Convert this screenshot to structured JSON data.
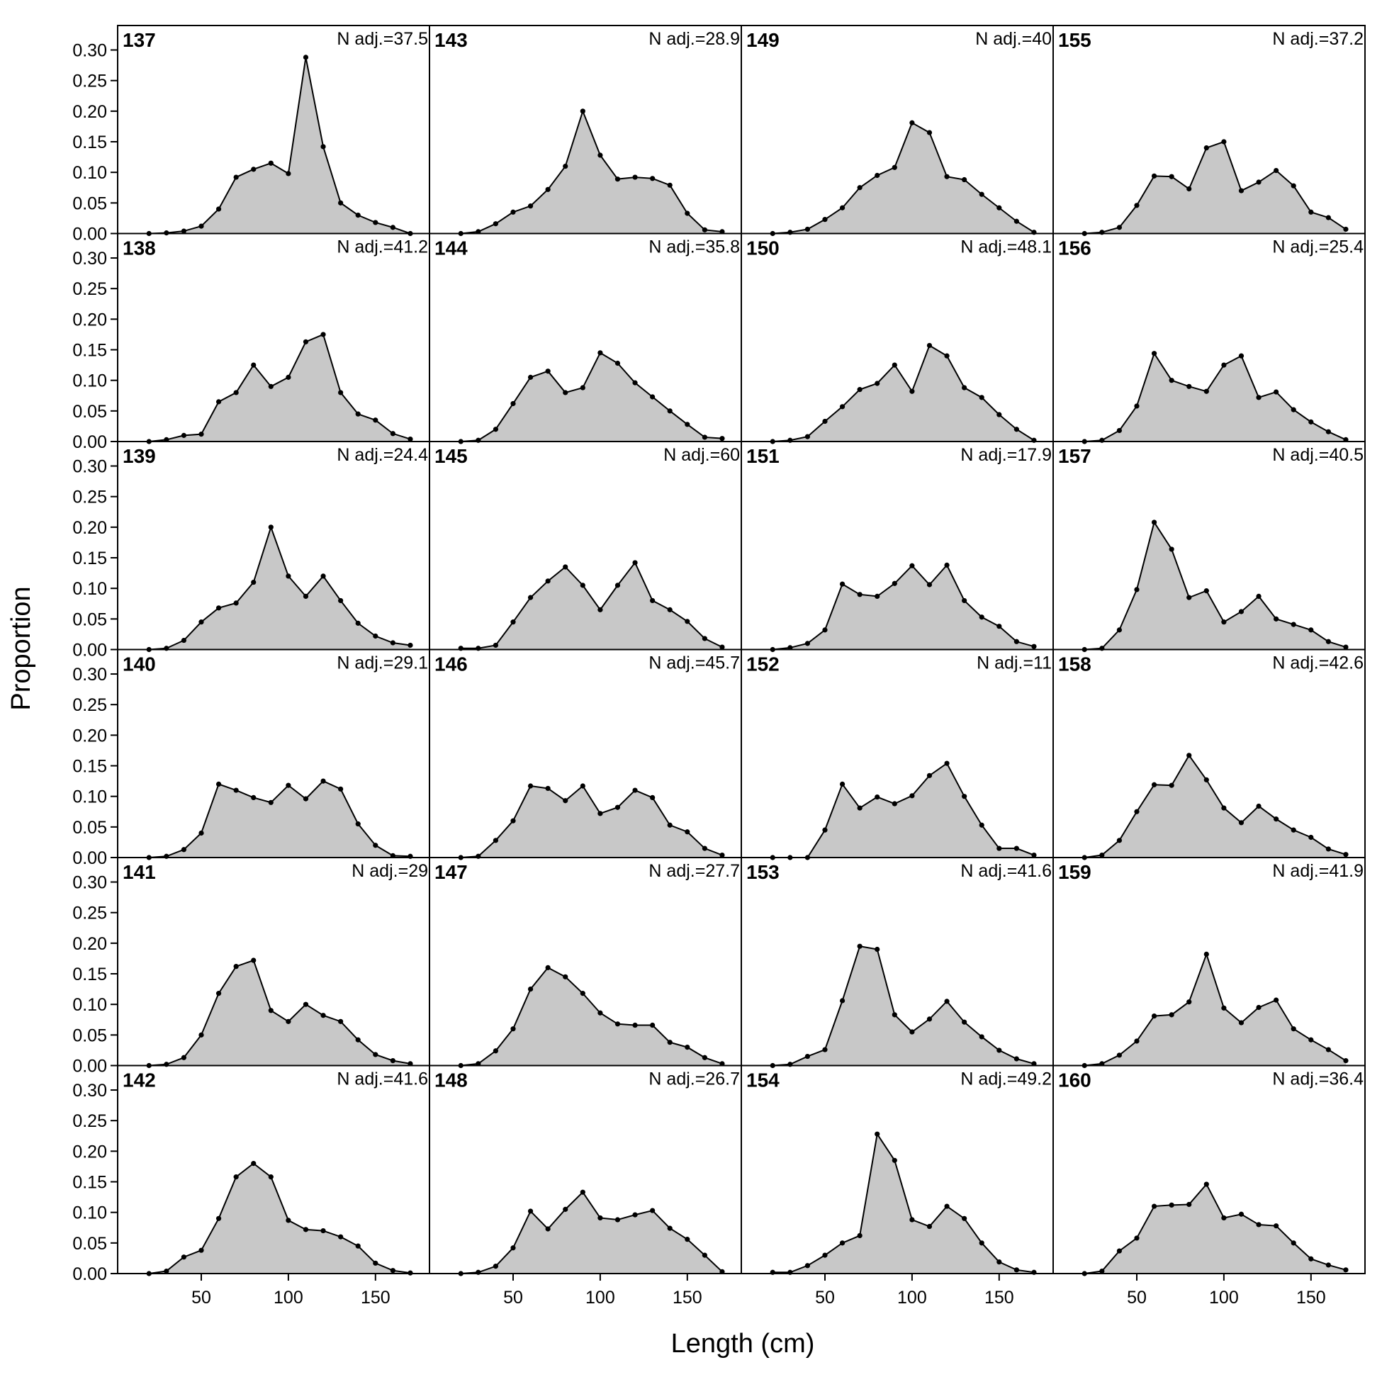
{
  "chart_data": {
    "type": "area",
    "xlabel": "Length (cm)",
    "ylabel": "Proportion",
    "xlim": [
      2,
      181
    ],
    "ylim": [
      0,
      0.34
    ],
    "x_ticks": [
      50,
      100,
      150
    ],
    "y_ticks": [
      0.0,
      0.05,
      0.1,
      0.15,
      0.2,
      0.25,
      0.3
    ],
    "y_tick_labels": [
      "0.00",
      "0.05",
      "0.10",
      "0.15",
      "0.20",
      "0.25",
      "0.30"
    ],
    "x_tick_labels": [
      "50",
      "100",
      "150"
    ],
    "colors": {
      "fill": "#c8c8c8",
      "line": "#000000",
      "point": "#000000"
    },
    "x": [
      20,
      30,
      40,
      50,
      60,
      70,
      80,
      90,
      100,
      110,
      120,
      130,
      140,
      150,
      160,
      170
    ],
    "grid_rows": 6,
    "grid_cols": 4,
    "panels": [
      {
        "title": "137",
        "n_adj": "N adj.=37.5",
        "values": [
          0,
          0.001,
          0.004,
          0.012,
          0.04,
          0.092,
          0.105,
          0.115,
          0.098,
          0.288,
          0.142,
          0.05,
          0.03,
          0.018,
          0.01,
          0
        ]
      },
      {
        "title": "138",
        "n_adj": "N adj.=41.2",
        "values": [
          0,
          0.003,
          0.01,
          0.012,
          0.065,
          0.08,
          0.125,
          0.09,
          0.105,
          0.163,
          0.175,
          0.08,
          0.045,
          0.035,
          0.013,
          0.004
        ]
      },
      {
        "title": "139",
        "n_adj": "N adj.=24.4",
        "values": [
          0,
          0.002,
          0.015,
          0.045,
          0.068,
          0.076,
          0.11,
          0.2,
          0.12,
          0.087,
          0.12,
          0.08,
          0.043,
          0.022,
          0.011,
          0.007
        ]
      },
      {
        "title": "140",
        "n_adj": "N adj.=29.1",
        "values": [
          0,
          0.002,
          0.013,
          0.04,
          0.12,
          0.11,
          0.098,
          0.09,
          0.118,
          0.096,
          0.125,
          0.112,
          0.055,
          0.02,
          0.003,
          0.002
        ]
      },
      {
        "title": "141",
        "n_adj": "N adj.=29",
        "values": [
          0,
          0.002,
          0.013,
          0.05,
          0.118,
          0.162,
          0.172,
          0.09,
          0.072,
          0.1,
          0.082,
          0.072,
          0.042,
          0.018,
          0.008,
          0.003
        ]
      },
      {
        "title": "142",
        "n_adj": "N adj.=41.6",
        "values": [
          0,
          0.004,
          0.027,
          0.038,
          0.09,
          0.158,
          0.18,
          0.158,
          0.087,
          0.072,
          0.07,
          0.06,
          0.045,
          0.017,
          0.005,
          0.001
        ]
      },
      {
        "title": "143",
        "n_adj": "N adj.=28.9",
        "values": [
          0,
          0.003,
          0.016,
          0.035,
          0.045,
          0.072,
          0.11,
          0.2,
          0.128,
          0.089,
          0.092,
          0.09,
          0.079,
          0.033,
          0.006,
          0.003
        ]
      },
      {
        "title": "144",
        "n_adj": "N adj.=35.8",
        "values": [
          0,
          0.002,
          0.02,
          0.062,
          0.105,
          0.115,
          0.08,
          0.088,
          0.145,
          0.128,
          0.096,
          0.073,
          0.05,
          0.028,
          0.007,
          0.005
        ]
      },
      {
        "title": "145",
        "n_adj": "N adj.=60",
        "values": [
          0.002,
          0.002,
          0.007,
          0.045,
          0.085,
          0.112,
          0.135,
          0.105,
          0.065,
          0.105,
          0.142,
          0.08,
          0.065,
          0.046,
          0.018,
          0.004
        ]
      },
      {
        "title": "146",
        "n_adj": "N adj.=45.7",
        "values": [
          0,
          0.002,
          0.028,
          0.06,
          0.117,
          0.113,
          0.093,
          0.117,
          0.072,
          0.082,
          0.11,
          0.098,
          0.053,
          0.042,
          0.015,
          0.004
        ]
      },
      {
        "title": "147",
        "n_adj": "N adj.=27.7",
        "values": [
          0,
          0.003,
          0.024,
          0.06,
          0.125,
          0.16,
          0.145,
          0.118,
          0.086,
          0.068,
          0.066,
          0.066,
          0.038,
          0.03,
          0.013,
          0.003
        ]
      },
      {
        "title": "148",
        "n_adj": "N adj.=26.7",
        "values": [
          0,
          0.002,
          0.012,
          0.042,
          0.102,
          0.073,
          0.105,
          0.133,
          0.091,
          0.088,
          0.096,
          0.103,
          0.074,
          0.056,
          0.03,
          0.003
        ]
      },
      {
        "title": "149",
        "n_adj": "N adj.=40",
        "values": [
          0,
          0.002,
          0.007,
          0.023,
          0.042,
          0.075,
          0.095,
          0.108,
          0.181,
          0.165,
          0.093,
          0.088,
          0.064,
          0.042,
          0.02,
          0.002
        ]
      },
      {
        "title": "150",
        "n_adj": "N adj.=48.1",
        "values": [
          0,
          0.002,
          0.008,
          0.033,
          0.057,
          0.085,
          0.095,
          0.125,
          0.082,
          0.157,
          0.14,
          0.088,
          0.072,
          0.044,
          0.02,
          0.002
        ]
      },
      {
        "title": "151",
        "n_adj": "N adj.=17.9",
        "values": [
          0,
          0.003,
          0.01,
          0.032,
          0.107,
          0.09,
          0.087,
          0.108,
          0.137,
          0.106,
          0.138,
          0.08,
          0.053,
          0.038,
          0.013,
          0.005
        ]
      },
      {
        "title": "152",
        "n_adj": "N adj.=11",
        "values": [
          0,
          0,
          0,
          0.045,
          0.12,
          0.081,
          0.099,
          0.088,
          0.101,
          0.134,
          0.154,
          0.1,
          0.053,
          0.015,
          0.015,
          0.004
        ]
      },
      {
        "title": "153",
        "n_adj": "N adj.=41.6",
        "values": [
          0,
          0.002,
          0.015,
          0.026,
          0.106,
          0.195,
          0.19,
          0.083,
          0.055,
          0.076,
          0.105,
          0.071,
          0.047,
          0.025,
          0.011,
          0.003
        ]
      },
      {
        "title": "154",
        "n_adj": "N adj.=49.2",
        "values": [
          0.002,
          0.002,
          0.013,
          0.03,
          0.05,
          0.062,
          0.228,
          0.185,
          0.088,
          0.077,
          0.11,
          0.09,
          0.05,
          0.019,
          0.006,
          0.002
        ]
      },
      {
        "title": "155",
        "n_adj": "N adj.=37.2",
        "values": [
          0,
          0.002,
          0.01,
          0.046,
          0.094,
          0.093,
          0.073,
          0.14,
          0.15,
          0.07,
          0.084,
          0.103,
          0.078,
          0.035,
          0.026,
          0.007
        ]
      },
      {
        "title": "156",
        "n_adj": "N adj.=25.4",
        "values": [
          0,
          0.002,
          0.018,
          0.058,
          0.144,
          0.1,
          0.09,
          0.082,
          0.125,
          0.14,
          0.072,
          0.081,
          0.052,
          0.032,
          0.016,
          0.003
        ]
      },
      {
        "title": "157",
        "n_adj": "N adj.=40.5",
        "values": [
          0,
          0.002,
          0.032,
          0.098,
          0.208,
          0.164,
          0.085,
          0.096,
          0.045,
          0.062,
          0.087,
          0.05,
          0.041,
          0.032,
          0.013,
          0.004
        ]
      },
      {
        "title": "158",
        "n_adj": "N adj.=42.6",
        "values": [
          0,
          0.004,
          0.028,
          0.075,
          0.119,
          0.118,
          0.167,
          0.127,
          0.081,
          0.057,
          0.084,
          0.063,
          0.045,
          0.033,
          0.014,
          0.005
        ]
      },
      {
        "title": "159",
        "n_adj": "N adj.=41.9",
        "values": [
          0,
          0.003,
          0.017,
          0.04,
          0.081,
          0.083,
          0.104,
          0.182,
          0.094,
          0.07,
          0.095,
          0.107,
          0.06,
          0.042,
          0.026,
          0.008
        ]
      },
      {
        "title": "160",
        "n_adj": "N adj.=36.4",
        "values": [
          0,
          0.004,
          0.037,
          0.058,
          0.11,
          0.112,
          0.113,
          0.146,
          0.091,
          0.097,
          0.08,
          0.078,
          0.05,
          0.024,
          0.014,
          0.006
        ]
      }
    ]
  }
}
